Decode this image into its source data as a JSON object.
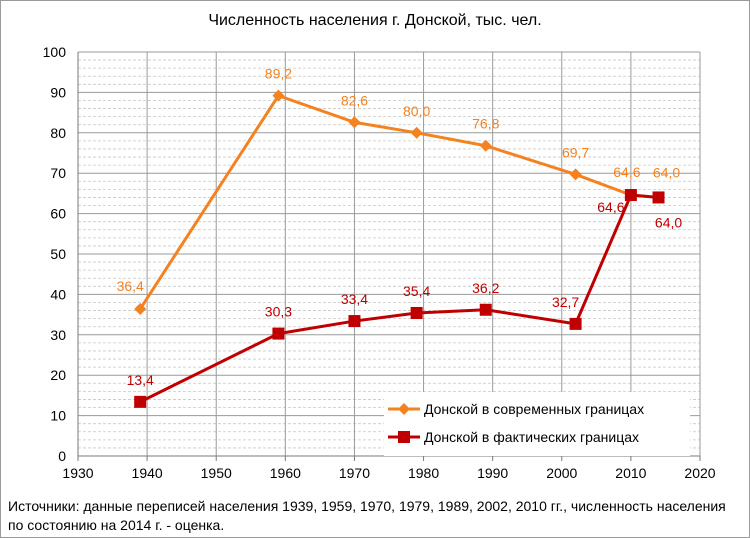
{
  "chart_data": {
    "type": "line",
    "title": "Численность населения г. Донской, тыс. чел.",
    "xlim": [
      1930,
      2020
    ],
    "ylim": [
      0,
      100
    ],
    "x_ticks": [
      1930,
      1940,
      1950,
      1960,
      1970,
      1980,
      1990,
      2000,
      2010,
      2020
    ],
    "y_ticks": [
      0,
      10,
      20,
      30,
      40,
      50,
      60,
      70,
      80,
      90,
      100
    ],
    "grid": true,
    "legend_position": "bottom-right",
    "series": [
      {
        "name": "Донской в современных границах",
        "color": "#f58220",
        "marker": "diamond",
        "x": [
          1939,
          1959,
          1970,
          1979,
          1989,
          2002,
          2010,
          2014
        ],
        "y": [
          36.4,
          89.2,
          82.6,
          80.0,
          76.8,
          69.7,
          64.6,
          64.0
        ],
        "labels": [
          "36,4",
          "89,2",
          "82,6",
          "80,0",
          "76,8",
          "69,7",
          "64,6",
          "64,0"
        ]
      },
      {
        "name": "Донской в фактических границах",
        "color": "#c00000",
        "marker": "square",
        "x": [
          1939,
          1959,
          1970,
          1979,
          1989,
          2002,
          2010,
          2014
        ],
        "y": [
          13.4,
          30.3,
          33.4,
          35.4,
          36.2,
          32.7,
          64.6,
          64.0
        ],
        "labels": [
          "13,4",
          "30,3",
          "33,4",
          "35,4",
          "36,2",
          "32,7",
          "64,6",
          "64,0"
        ]
      }
    ]
  },
  "footnote": "Источники:  данные переписей населения 1939, 1959, 1970, 1979, 1989, 2002, 2010  гг.,  численность населения по состоянию на 2014 г. - оценка."
}
